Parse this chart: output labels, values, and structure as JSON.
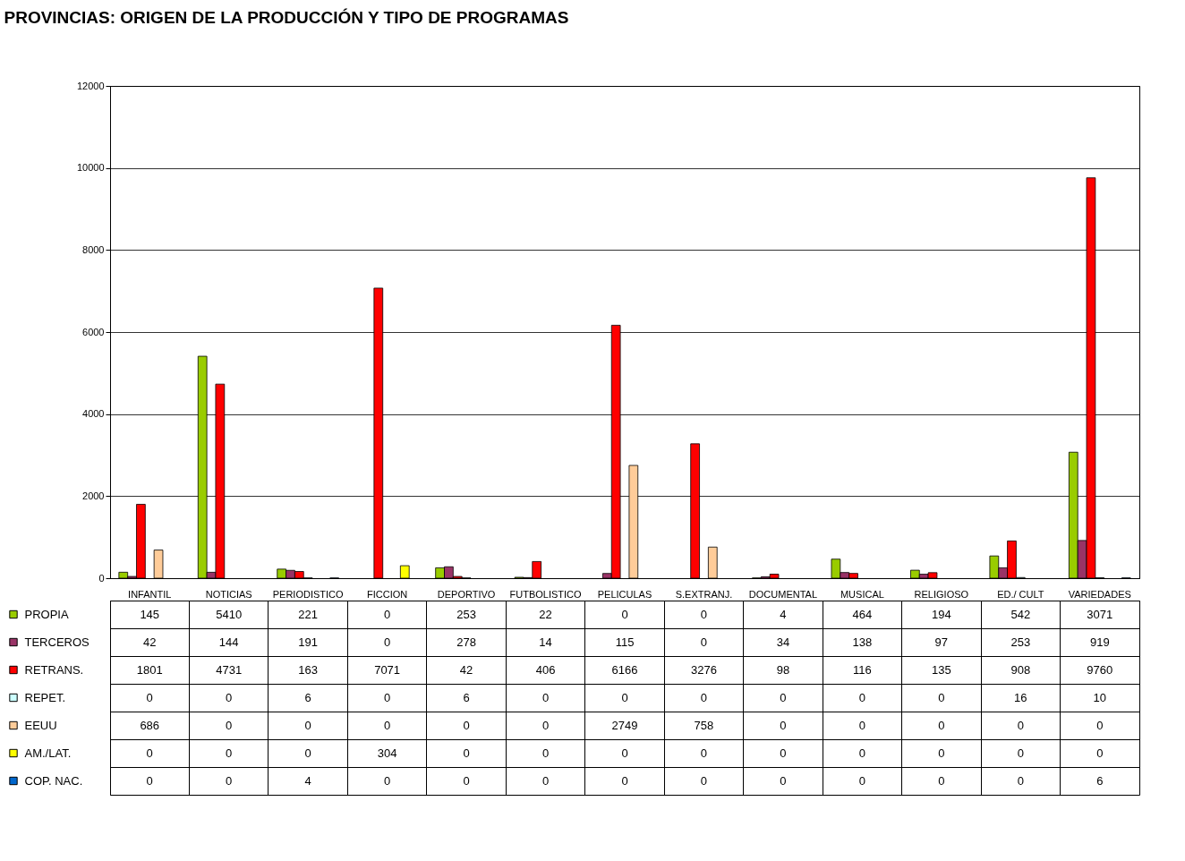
{
  "chart_data": {
    "type": "bar",
    "title": "PROVINCIAS: ORIGEN DE LA PRODUCCIÓN Y TIPO DE PROGRAMAS",
    "categories": [
      "INFANTIL",
      "NOTICIAS",
      "PERIODISTICO",
      "FICCION",
      "DEPORTIVO",
      "FUTBOLISTICO",
      "PELICULAS",
      "S.EXTRANJ.",
      "DOCUMENTAL",
      "MUSICAL",
      "RELIGIOSO",
      "ED./ CULT",
      "VARIEDADES"
    ],
    "series": [
      {
        "name": "PROPIA",
        "color": "#99cc00",
        "values": [
          145,
          5410,
          221,
          0,
          253,
          22,
          0,
          0,
          4,
          464,
          194,
          542,
          3071
        ]
      },
      {
        "name": "TERCEROS",
        "color": "#993366",
        "values": [
          42,
          144,
          191,
          0,
          278,
          14,
          115,
          0,
          34,
          138,
          97,
          253,
          919
        ]
      },
      {
        "name": "RETRANS.",
        "color": "#ff0000",
        "values": [
          1801,
          4731,
          163,
          7071,
          42,
          406,
          6166,
          3276,
          98,
          116,
          135,
          908,
          9760
        ]
      },
      {
        "name": "REPET.",
        "color": "#ccffff",
        "values": [
          0,
          0,
          6,
          0,
          6,
          0,
          0,
          0,
          0,
          0,
          0,
          16,
          10
        ]
      },
      {
        "name": "EEUU",
        "color": "#ffcc99",
        "values": [
          686,
          0,
          0,
          0,
          0,
          0,
          2749,
          758,
          0,
          0,
          0,
          0,
          0
        ]
      },
      {
        "name": "AM./LAT.",
        "color": "#ffff00",
        "values": [
          0,
          0,
          0,
          304,
          0,
          0,
          0,
          0,
          0,
          0,
          0,
          0,
          0
        ]
      },
      {
        "name": "COP. NAC.",
        "color": "#0066cc",
        "values": [
          0,
          0,
          4,
          0,
          0,
          0,
          0,
          0,
          0,
          0,
          0,
          0,
          6
        ]
      }
    ],
    "ylim": [
      0,
      12000
    ],
    "yticks": [
      0,
      2000,
      4000,
      6000,
      8000,
      10000,
      12000
    ],
    "grid": "y",
    "legend": "bottom left",
    "data_labels": true
  }
}
